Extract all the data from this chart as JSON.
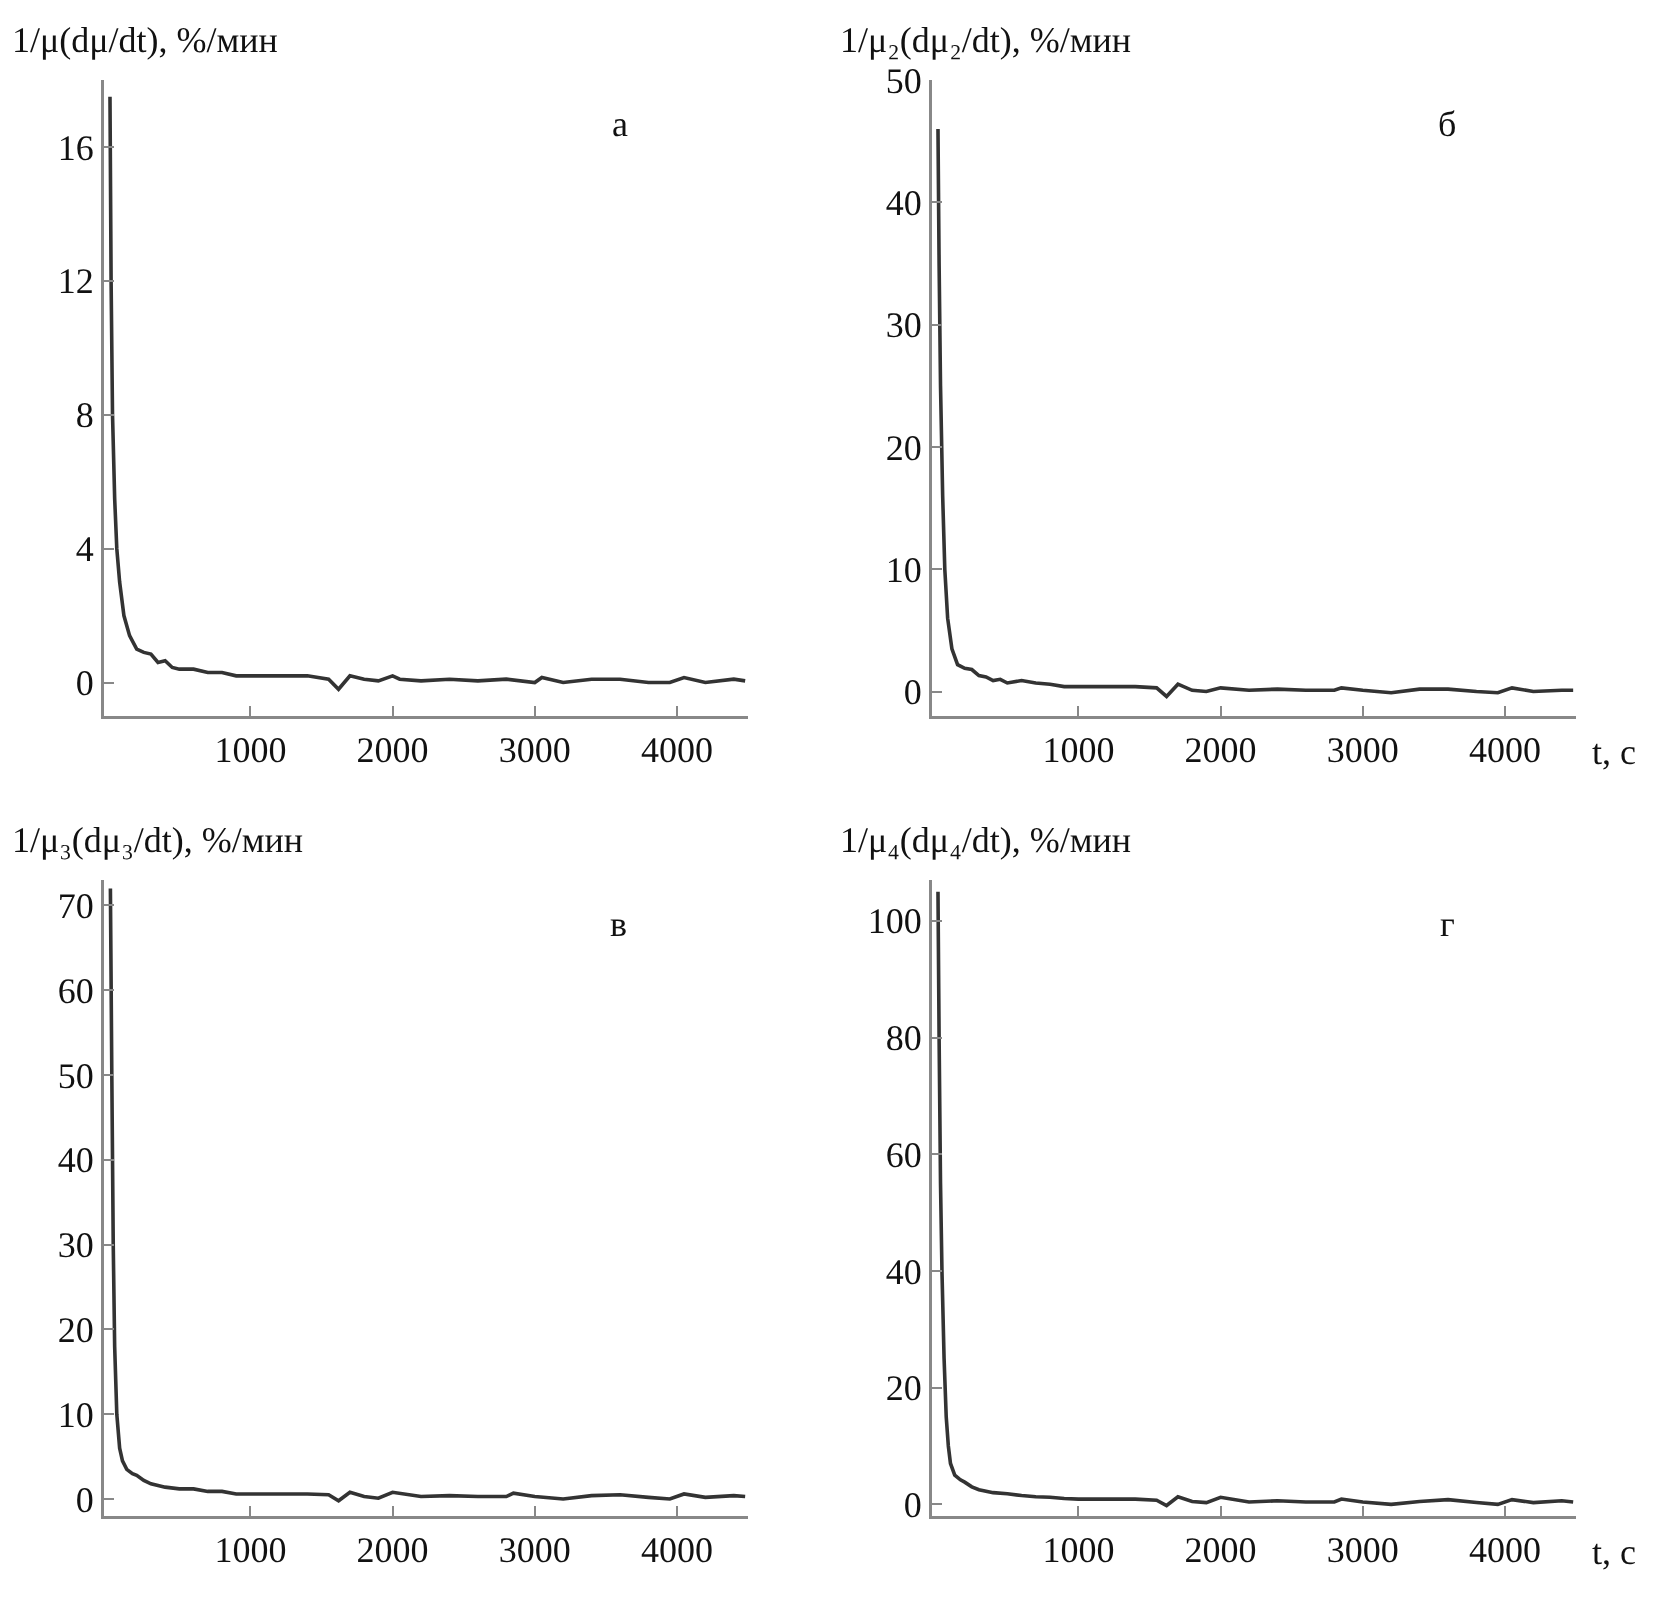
{
  "chart_data": [
    {
      "type": "line",
      "ylabel": "1/μ(dμ/dt), %/мин",
      "annotations": [
        "а"
      ],
      "color": "#333333",
      "grid": false,
      "x": [
        12,
        20,
        30,
        45,
        60,
        80,
        110,
        150,
        200,
        250,
        300,
        350,
        400,
        450,
        500,
        600,
        700,
        800,
        900,
        1000,
        1200,
        1400,
        1550,
        1620,
        1700,
        1800,
        1900,
        2000,
        2050,
        2200,
        2400,
        2600,
        2800,
        3000,
        3050,
        3200,
        3400,
        3600,
        3800,
        3950,
        4050,
        4200,
        4400,
        4480
      ],
      "values": [
        17.5,
        12,
        8,
        5.5,
        4,
        3,
        2,
        1.4,
        1,
        0.9,
        0.85,
        0.6,
        0.65,
        0.45,
        0.4,
        0.4,
        0.3,
        0.3,
        0.2,
        0.2,
        0.2,
        0.2,
        0.1,
        -0.2,
        0.2,
        0.1,
        0.05,
        0.2,
        0.1,
        0.05,
        0.1,
        0.05,
        0.1,
        0,
        0.15,
        0,
        0.1,
        0.1,
        0,
        0,
        0.15,
        0,
        0.1,
        0.05
      ],
      "xlim": [
        -30,
        4500
      ],
      "ylim": [
        -1,
        18
      ],
      "xticks": [
        1000,
        2000,
        3000,
        4000
      ],
      "yticks": [
        0,
        4,
        8,
        12,
        16
      ]
    },
    {
      "type": "line",
      "ylabel": "1/μ₂(dμ₂/dt), %/мин",
      "xlabel": "t, с",
      "annotations": [
        "б"
      ],
      "color": "#333333",
      "grid": false,
      "x": [
        12,
        20,
        30,
        45,
        60,
        80,
        110,
        150,
        200,
        250,
        300,
        350,
        400,
        450,
        500,
        600,
        700,
        800,
        900,
        1000,
        1200,
        1400,
        1550,
        1620,
        1700,
        1800,
        1900,
        2000,
        2200,
        2400,
        2600,
        2800,
        2850,
        3000,
        3200,
        3400,
        3600,
        3800,
        3950,
        4050,
        4200,
        4400,
        4480
      ],
      "values": [
        46,
        35,
        25,
        16,
        10,
        6,
        3.5,
        2.2,
        1.9,
        1.8,
        1.3,
        1.2,
        0.9,
        1,
        0.7,
        0.9,
        0.7,
        0.6,
        0.4,
        0.4,
        0.4,
        0.4,
        0.3,
        -0.4,
        0.6,
        0.1,
        0,
        0.3,
        0.1,
        0.2,
        0.1,
        0.1,
        0.3,
        0.1,
        -0.1,
        0.2,
        0.2,
        0,
        -0.1,
        0.3,
        0,
        0.1,
        0.1
      ],
      "xlim": [
        -30,
        4500
      ],
      "ylim": [
        -2,
        50
      ],
      "xticks": [
        1000,
        2000,
        3000,
        4000
      ],
      "yticks": [
        0,
        10,
        20,
        30,
        40,
        50
      ]
    },
    {
      "type": "line",
      "ylabel": "1/μ₃(dμ₃/dt), %/мин",
      "annotations": [
        "в"
      ],
      "color": "#333333",
      "grid": false,
      "x": [
        15,
        25,
        35,
        45,
        60,
        80,
        100,
        130,
        170,
        200,
        250,
        300,
        400,
        500,
        600,
        700,
        800,
        900,
        1000,
        1200,
        1400,
        1550,
        1620,
        1700,
        1800,
        1900,
        2000,
        2200,
        2400,
        2600,
        2800,
        2850,
        3000,
        3200,
        3400,
        3600,
        3800,
        3950,
        4050,
        4200,
        4400,
        4480
      ],
      "values": [
        72,
        50,
        30,
        18,
        10,
        6,
        4.5,
        3.5,
        3,
        2.8,
        2.2,
        1.8,
        1.4,
        1.2,
        1.2,
        0.9,
        0.9,
        0.6,
        0.6,
        0.6,
        0.6,
        0.5,
        -0.2,
        0.8,
        0.3,
        0.1,
        0.8,
        0.3,
        0.4,
        0.3,
        0.3,
        0.7,
        0.3,
        0,
        0.4,
        0.5,
        0.2,
        0,
        0.6,
        0.2,
        0.4,
        0.3
      ],
      "xlim": [
        -30,
        4500
      ],
      "ylim": [
        -2,
        73
      ],
      "xticks": [
        1000,
        2000,
        3000,
        4000
      ],
      "yticks": [
        0,
        10,
        20,
        30,
        40,
        50,
        60,
        70
      ]
    },
    {
      "type": "line",
      "ylabel": "1/μ₄(dμ₄/dt), %/мин",
      "xlabel": "t, с",
      "annotations": [
        "г"
      ],
      "color": "#333333",
      "grid": false,
      "x": [
        12,
        20,
        30,
        40,
        55,
        70,
        85,
        100,
        130,
        170,
        200,
        250,
        300,
        400,
        500,
        600,
        700,
        800,
        900,
        1000,
        1200,
        1400,
        1550,
        1620,
        1700,
        1800,
        1900,
        2000,
        2200,
        2400,
        2600,
        2800,
        2850,
        3000,
        3200,
        3400,
        3600,
        3800,
        3950,
        4050,
        4200,
        4400,
        4480
      ],
      "values": [
        105,
        80,
        55,
        40,
        25,
        15,
        10,
        7,
        5,
        4.2,
        3.8,
        3,
        2.5,
        2,
        1.8,
        1.5,
        1.3,
        1.2,
        1,
        0.9,
        0.9,
        0.9,
        0.7,
        -0.2,
        1.3,
        0.5,
        0.3,
        1.2,
        0.4,
        0.6,
        0.4,
        0.4,
        0.9,
        0.4,
        0,
        0.5,
        0.8,
        0.3,
        0,
        0.8,
        0.3,
        0.6,
        0.4
      ],
      "xlim": [
        -30,
        4500
      ],
      "ylim": [
        -2,
        107
      ],
      "xticks": [
        1000,
        2000,
        3000,
        4000
      ],
      "yticks": [
        0,
        20,
        40,
        60,
        80,
        100
      ]
    }
  ]
}
